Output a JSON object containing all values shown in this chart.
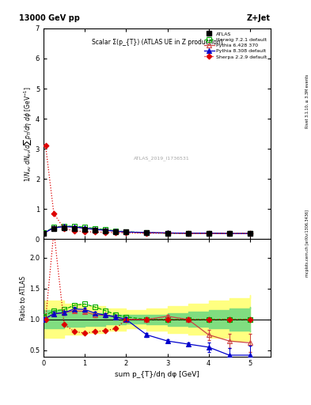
{
  "title_top": "13000 GeV pp",
  "title_right": "Z+Jet",
  "plot_title": "Scalar Σ(p_{T}) (ATLAS UE in Z production)",
  "watermark": "ATLAS_2019_I1736531",
  "right_label1": "Rivet 3.1.10, ≥ 3.3M events",
  "right_label2": "mcplots.cern.ch [arXiv:1306.3436]",
  "xlabel": "sum p_{T}/dη dφ [GeV]",
  "ylabel": "1/N_{ev} dN_{ev}/dsum p_{T}/dη dφ [GeV]",
  "ylabel_ratio": "Ratio to ATLAS",
  "xlim": [
    0,
    5.5
  ],
  "ylim_main": [
    0,
    7
  ],
  "ylim_ratio": [
    0.4,
    2.3
  ],
  "atlas_x": [
    0.0,
    0.25,
    0.5,
    0.75,
    1.0,
    1.25,
    1.5,
    1.75,
    2.0,
    2.5,
    3.0,
    3.5,
    4.0,
    4.5,
    5.0
  ],
  "atlas_y": [
    0.2,
    0.35,
    0.38,
    0.35,
    0.32,
    0.3,
    0.28,
    0.26,
    0.24,
    0.22,
    0.2,
    0.2,
    0.2,
    0.19,
    0.19
  ],
  "atlas_yerr": [
    0.02,
    0.02,
    0.02,
    0.02,
    0.02,
    0.02,
    0.015,
    0.015,
    0.015,
    0.015,
    0.015,
    0.015,
    0.02,
    0.02,
    0.02
  ],
  "herwig_x": [
    0.0,
    0.25,
    0.5,
    0.75,
    1.0,
    1.25,
    1.5,
    1.75,
    2.0,
    2.5,
    3.0,
    3.5,
    4.0,
    4.5,
    5.0
  ],
  "herwig_y": [
    0.21,
    0.4,
    0.44,
    0.43,
    0.4,
    0.36,
    0.32,
    0.28,
    0.25,
    0.22,
    0.2,
    0.2,
    0.2,
    0.19,
    0.19
  ],
  "pythia6_x": [
    0.0,
    0.25,
    0.5,
    0.75,
    1.0,
    1.25,
    1.5,
    1.75,
    2.0,
    2.5,
    3.0,
    3.5,
    4.0,
    4.5,
    5.0
  ],
  "pythia6_y": [
    0.2,
    0.38,
    0.42,
    0.4,
    0.36,
    0.32,
    0.3,
    0.27,
    0.24,
    0.22,
    0.21,
    0.2,
    0.2,
    0.19,
    0.19
  ],
  "pythia8_x": [
    0.0,
    0.25,
    0.5,
    0.75,
    1.0,
    1.25,
    1.5,
    1.75,
    2.0,
    2.5,
    3.0,
    3.5,
    4.0,
    4.5,
    5.0
  ],
  "pythia8_y": [
    0.2,
    0.38,
    0.42,
    0.41,
    0.37,
    0.33,
    0.3,
    0.27,
    0.24,
    0.22,
    0.21,
    0.2,
    0.2,
    0.19,
    0.19
  ],
  "sherpa_x": [
    0.05,
    0.25,
    0.5,
    0.75,
    1.0,
    1.25,
    1.5,
    1.75,
    2.0,
    2.5,
    3.0,
    3.5,
    4.0,
    4.5,
    5.0
  ],
  "sherpa_y": [
    3.1,
    0.85,
    0.35,
    0.28,
    0.25,
    0.24,
    0.23,
    0.22,
    0.21,
    0.2,
    0.2,
    0.19,
    0.19,
    0.19,
    0.19
  ],
  "herwig_ratio": [
    1.05,
    1.14,
    1.16,
    1.23,
    1.25,
    1.2,
    1.14,
    1.08,
    1.04,
    1.0,
    1.0,
    1.0,
    1.0,
    1.0,
    1.0
  ],
  "pythia6_ratio": [
    1.0,
    1.09,
    1.11,
    1.14,
    1.13,
    1.07,
    1.07,
    1.04,
    1.0,
    1.0,
    1.05,
    1.0,
    0.75,
    0.65,
    0.62
  ],
  "pythia8_ratio": [
    1.0,
    1.09,
    1.11,
    1.17,
    1.16,
    1.1,
    1.07,
    1.04,
    1.0,
    0.75,
    0.65,
    0.6,
    0.55,
    0.42,
    0.42
  ],
  "sherpa_ratio": [
    1.0,
    2.43,
    0.92,
    0.8,
    0.78,
    0.8,
    0.82,
    0.85,
    1.0,
    1.0,
    1.0,
    1.0,
    1.0,
    1.0,
    1.0
  ],
  "band_x": [
    0.0,
    0.5,
    1.0,
    1.5,
    2.0,
    2.5,
    3.0,
    3.5,
    4.0,
    4.5,
    5.0
  ],
  "band_green_lo": [
    0.85,
    0.88,
    0.9,
    0.92,
    0.93,
    0.92,
    0.9,
    0.88,
    0.85,
    0.82,
    0.8
  ],
  "band_green_hi": [
    1.15,
    1.12,
    1.1,
    1.08,
    1.07,
    1.08,
    1.1,
    1.12,
    1.15,
    1.18,
    1.2
  ],
  "band_yellow_lo": [
    0.7,
    0.75,
    0.78,
    0.82,
    0.85,
    0.82,
    0.78,
    0.75,
    0.7,
    0.65,
    0.6
  ],
  "band_yellow_hi": [
    1.3,
    1.25,
    1.22,
    1.18,
    1.15,
    1.18,
    1.22,
    1.25,
    1.3,
    1.35,
    1.4
  ],
  "color_herwig": "#00aa00",
  "color_pythia6": "#cc0000",
  "color_pythia8": "#0000cc",
  "color_sherpa": "#cc0000",
  "color_atlas": "black",
  "bg_color": "#ffffff"
}
